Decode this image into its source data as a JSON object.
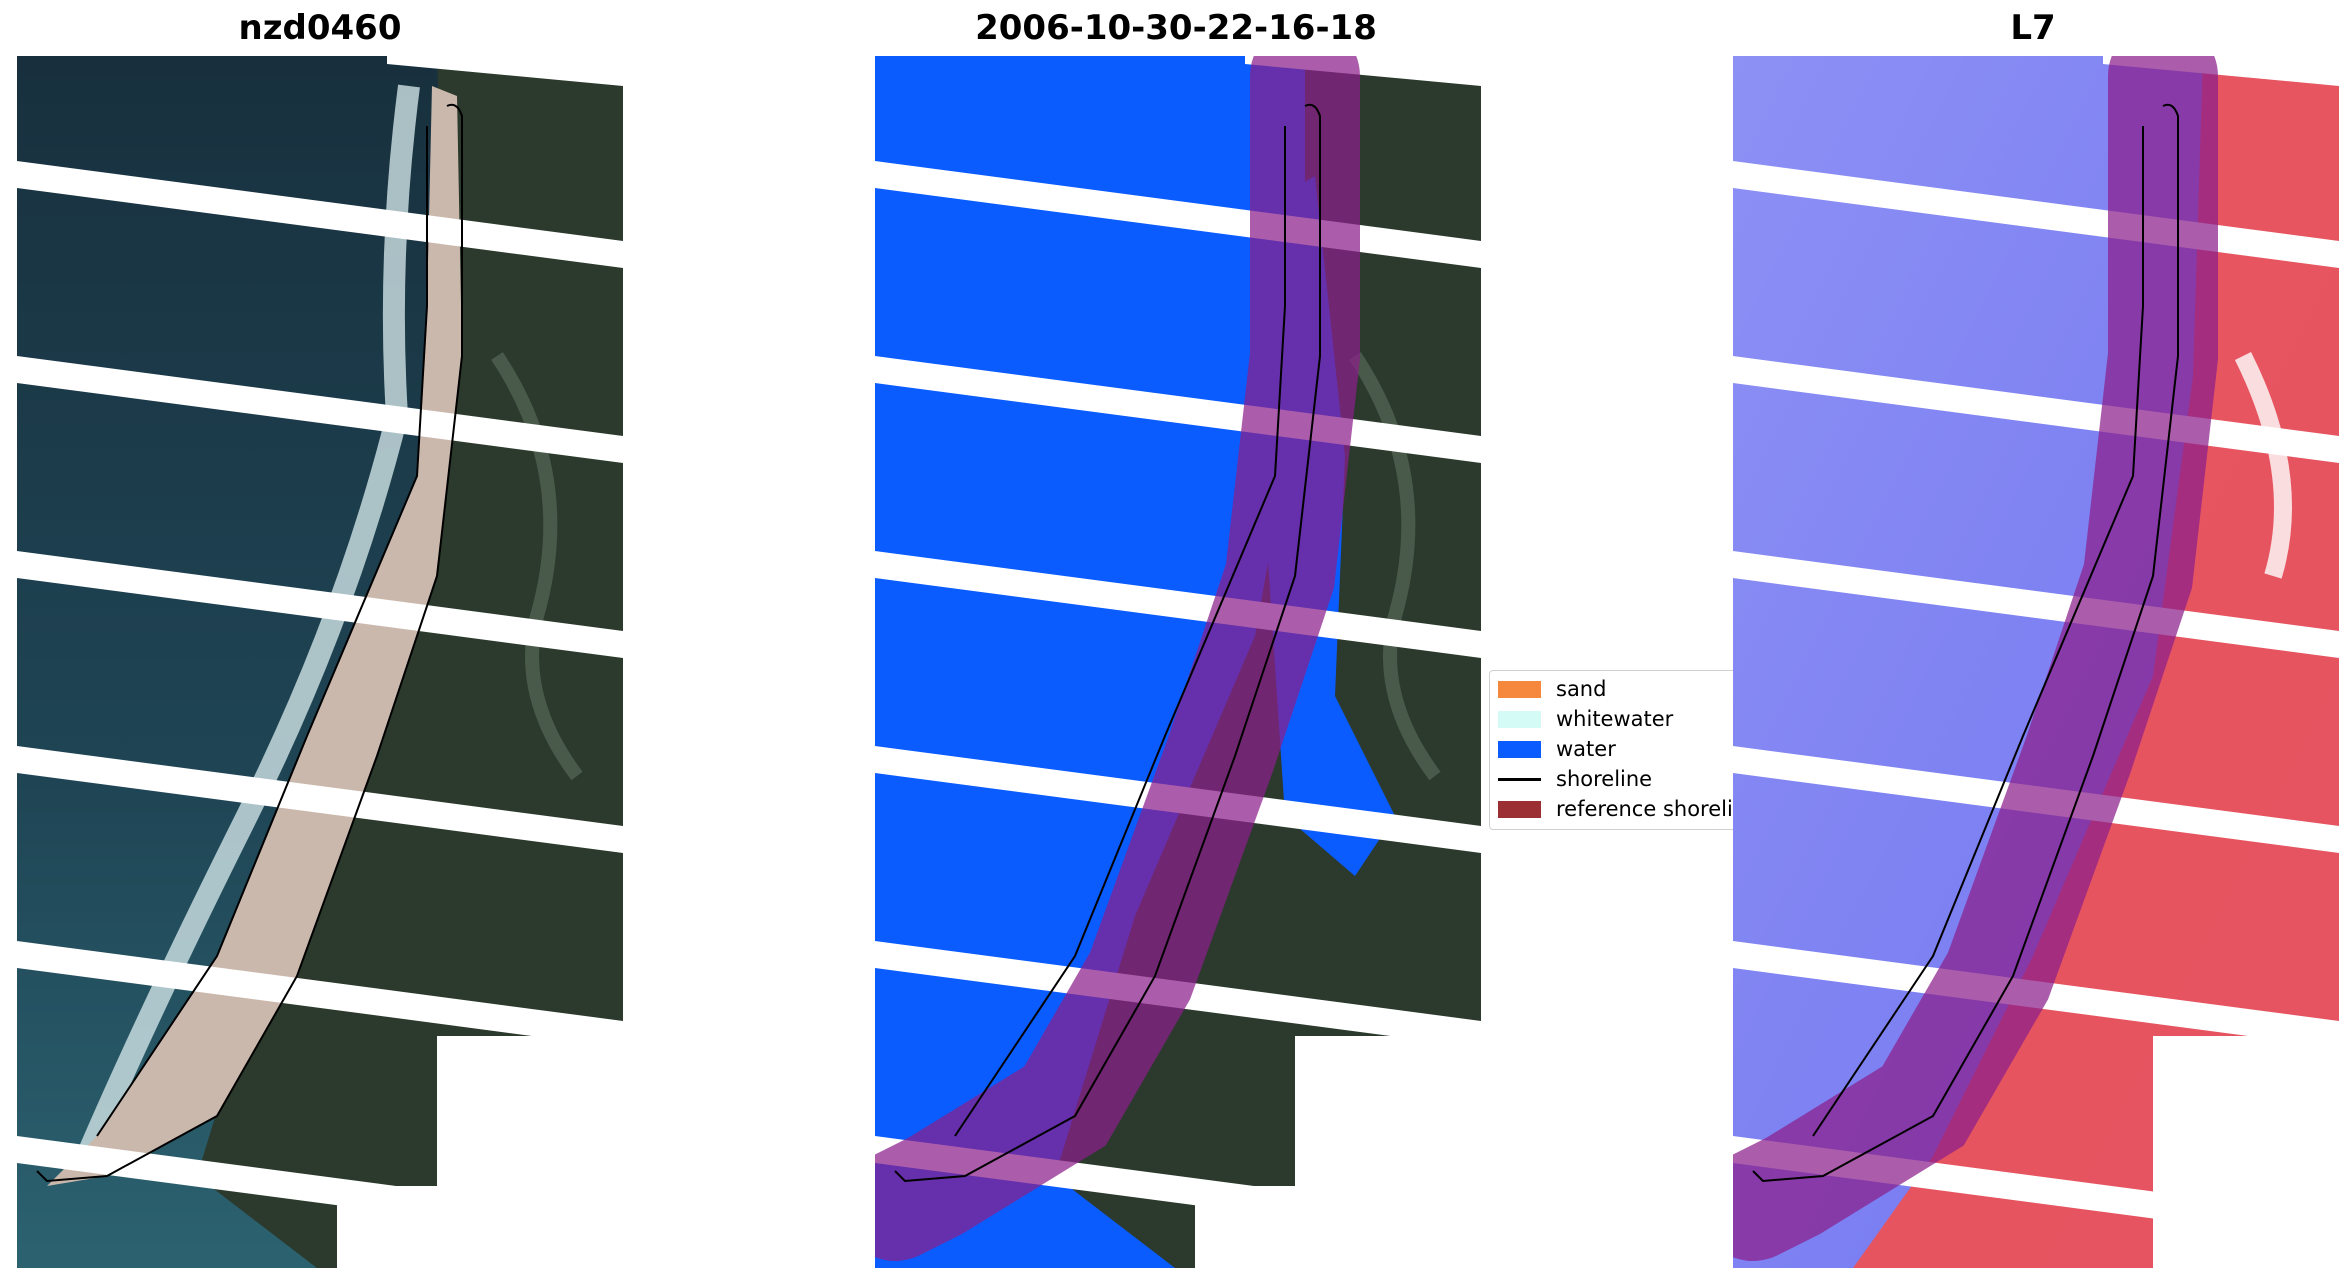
{
  "panels": [
    {
      "title": "nzd0460"
    },
    {
      "title": "2006-10-30-22-16-18"
    },
    {
      "title": "L7"
    }
  ],
  "legend": {
    "items": [
      {
        "label": "sand",
        "color": "#f5883c",
        "kind": "patch"
      },
      {
        "label": "whitewater",
        "color": "#d4fbf6",
        "kind": "patch"
      },
      {
        "label": "water",
        "color": "#0a5cff",
        "kind": "patch"
      },
      {
        "label": "shoreline",
        "color": "#000000",
        "kind": "line"
      },
      {
        "label": "reference shoreli",
        "color": "#9b2f33",
        "kind": "patch"
      }
    ]
  },
  "colors": {
    "buffer": "#8b1f8a",
    "sea": "#1d3a4a",
    "vegetation": "#2c3a2a",
    "sand_beach": "#cbb8ad",
    "water_class": "#0a5cff",
    "index_blue": "#6f74f0",
    "index_red": "#f04545"
  }
}
